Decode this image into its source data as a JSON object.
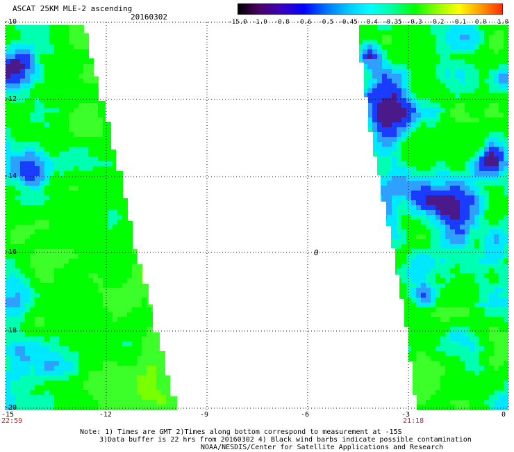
{
  "header": {
    "title": "ASCAT 25KM MLE-2 ascending",
    "date": "20160302"
  },
  "colorbar": {
    "labels": [
      "-15.0",
      "-1.0",
      "-0.8",
      "-0.6",
      "-0.5",
      "-0.45",
      "-0.4",
      "-0.35",
      "-0.3",
      "-0.2",
      "-0.1",
      "0.0",
      "1.0"
    ],
    "colors": [
      "#000000",
      "#4b0066",
      "#3a00c0",
      "#0000ff",
      "#0072ff",
      "#00c8ff",
      "#00ffff",
      "#00ff9e",
      "#00ff00",
      "#8cff00",
      "#ffff00",
      "#ff9a00",
      "#ff2a00"
    ]
  },
  "map": {
    "y_ticks": [
      "-10",
      "-12",
      "-14",
      "-16",
      "-18",
      "-20"
    ],
    "x_ticks": [
      "-15",
      "-12",
      "-9",
      "-6",
      "-3",
      "0"
    ],
    "time_left": "22:59",
    "time_right": "21:18",
    "center_mark": "0",
    "palette": {
      "deep_purple": "#4a1a8a",
      "blue": "#1a3cff",
      "light_blue": "#2ea0ff",
      "cyan": "#00e8ff",
      "aqua_green": "#00ffb0",
      "green": "#00ff00",
      "yellow_green": "#78ff00",
      "lime": "#3cff2a"
    }
  },
  "notes": {
    "line1": "Note: 1) Times are GMT 2)Times along bottom correspond to measurement at -15S",
    "line2": "3)Data buffer is 22 hrs from 20160302 4) Black wind barbs indicate possible contamination",
    "line3": "NOAA/NESDIS/Center for Satellite Applications and Research"
  }
}
